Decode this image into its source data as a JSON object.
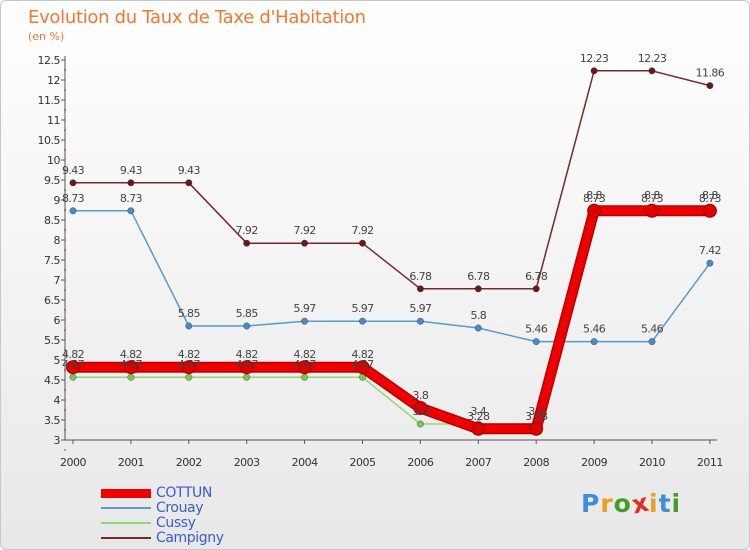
{
  "title": "Evolution du Taux de Taxe d'Habitation",
  "unit_label": "(en %)",
  "logo": {
    "text": "Proxiti",
    "colors": [
      "#3c8fd8",
      "#e8a020",
      "#4a9a28",
      "#e03020",
      "#e8a020",
      "#3c8fd8",
      "#4a9a28"
    ]
  },
  "chart_data": {
    "type": "line",
    "title": "Evolution du Taux de Taxe d'Habitation",
    "ylabel": "(en %)",
    "xlabel": "",
    "categories": [
      "2000",
      "2001",
      "2002",
      "2003",
      "2004",
      "2005",
      "2006",
      "2007",
      "2008",
      "2009",
      "2010",
      "2011"
    ],
    "ylim": [
      3,
      12.5
    ],
    "yticks": [
      3,
      3.5,
      4,
      4.5,
      5,
      5.5,
      6,
      6.5,
      7,
      7.5,
      8,
      8.5,
      9,
      9.5,
      10,
      10.5,
      11,
      11.5,
      12,
      12.5
    ],
    "ytick_labels": [
      "3",
      "3.5",
      "4",
      "4.5",
      "5",
      "5.5",
      "6",
      "6.5",
      "7",
      "7.5",
      "8",
      "8.5",
      "9",
      "9.5",
      "10",
      "10.5",
      "11",
      "11.5",
      "12",
      "12.5"
    ],
    "grid": false,
    "legend_position": "bottom-left",
    "series": [
      {
        "name": "Campigny",
        "color": "#7a2828",
        "marker": "#6a1818",
        "values": [
          9.43,
          9.43,
          9.43,
          7.92,
          7.92,
          7.92,
          6.78,
          6.78,
          6.78,
          12.23,
          12.23,
          11.86
        ],
        "labels": [
          "9.43",
          "9.43",
          "9.43",
          "7.92",
          "7.92",
          "7.92",
          "6.78",
          "6.78",
          "6.78",
          "12.23",
          "12.23",
          "11.86"
        ]
      },
      {
        "name": "Crouay",
        "color": "#5a9ad0",
        "marker": "#4a8ac8",
        "values": [
          8.73,
          8.73,
          5.85,
          5.85,
          5.97,
          5.97,
          5.97,
          5.8,
          5.46,
          5.46,
          5.46,
          7.42
        ],
        "labels": [
          "8.73",
          "8.73",
          "5.85",
          "5.85",
          "5.97",
          "5.97",
          "5.97",
          "5.8",
          "5.46",
          "5.46",
          "5.46",
          "7.42"
        ]
      },
      {
        "name": "Cussy",
        "color": "#90d870",
        "marker": "#7ac850",
        "values": [
          4.57,
          4.57,
          4.57,
          4.57,
          4.57,
          4.57,
          3.4,
          3.4,
          3.4,
          8.8,
          8.8,
          8.8
        ],
        "labels": [
          "4.57",
          "4.57",
          "4.57",
          "4.57",
          "4.57",
          "4.57",
          "3.4",
          "3.4",
          "3.4",
          "8.8",
          "8.8",
          "8.8"
        ]
      },
      {
        "name": "COTTUN",
        "color": "#ee0000",
        "marker": "#dd0000",
        "values": [
          4.82,
          4.82,
          4.82,
          4.82,
          4.82,
          4.82,
          3.8,
          3.28,
          3.28,
          8.73,
          8.73,
          8.73
        ],
        "labels": [
          "4.82",
          "4.82",
          "4.82",
          "4.82",
          "4.82",
          "4.82",
          "3.8",
          "3.28",
          "3.28",
          "8.73",
          "8.73",
          "8.73"
        ]
      }
    ],
    "legend": [
      "COTTUN",
      "Crouay",
      "Cussy",
      "Campigny"
    ]
  }
}
